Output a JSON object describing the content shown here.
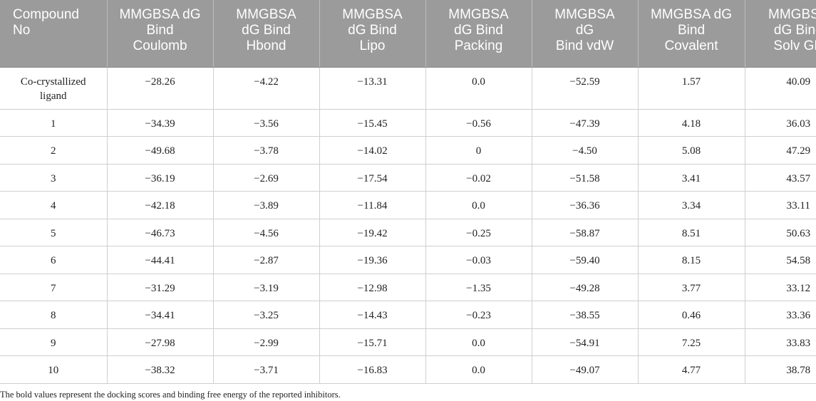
{
  "table": {
    "headers": [
      "Compound\nNo",
      "MMGBSA dG\nBind\nCoulomb",
      "MMGBSA\ndG Bind\nHbond",
      "MMGBSA\ndG Bind\nLipo",
      "MMGBSA\ndG Bind\nPacking",
      "MMGBSA\ndG\nBind vdW",
      "MMGBSA dG\nBind\nCovalent",
      "MMGBSA\ndG Bind\nSolv GB"
    ],
    "rows": [
      [
        "Co-crystallized\nligand",
        "−28.26",
        "−4.22",
        "−13.31",
        "0.0",
        "−52.59",
        "1.57",
        "40.09"
      ],
      [
        "1",
        "−34.39",
        "−3.56",
        "−15.45",
        "−0.56",
        "−47.39",
        "4.18",
        "36.03"
      ],
      [
        "2",
        "−49.68",
        "−3.78",
        "−14.02",
        "0",
        "−4.50",
        "5.08",
        "47.29"
      ],
      [
        "3",
        "−36.19",
        "−2.69",
        "−17.54",
        "−0.02",
        "−51.58",
        "3.41",
        "43.57"
      ],
      [
        "4",
        "−42.18",
        "−3.89",
        "−11.84",
        "0.0",
        "−36.36",
        "3.34",
        "33.11"
      ],
      [
        "5",
        "−46.73",
        "−4.56",
        "−19.42",
        "−0.25",
        "−58.87",
        "8.51",
        "50.63"
      ],
      [
        "6",
        "−44.41",
        "−2.87",
        "−19.36",
        "−0.03",
        "−59.40",
        "8.15",
        "54.58"
      ],
      [
        "7",
        "−31.29",
        "−3.19",
        "−12.98",
        "−1.35",
        "−49.28",
        "3.77",
        "33.12"
      ],
      [
        "8",
        "−34.41",
        "−3.25",
        "−14.43",
        "−0.23",
        "−38.55",
        "0.46",
        "33.36"
      ],
      [
        "9",
        "−27.98",
        "−2.99",
        "−15.71",
        "0.0",
        "−54.91",
        "7.25",
        "33.83"
      ],
      [
        "10",
        "−38.32",
        "−3.71",
        "−16.83",
        "0.0",
        "−49.07",
        "4.77",
        "38.78"
      ]
    ]
  },
  "footnote": "The bold values represent the docking scores and binding free energy of the reported inhibitors.",
  "colors": {
    "header_bg": "#9b9b9b",
    "header_text": "#ffffff",
    "grid_line": "#cfcfcf",
    "body_text": "#222222"
  }
}
